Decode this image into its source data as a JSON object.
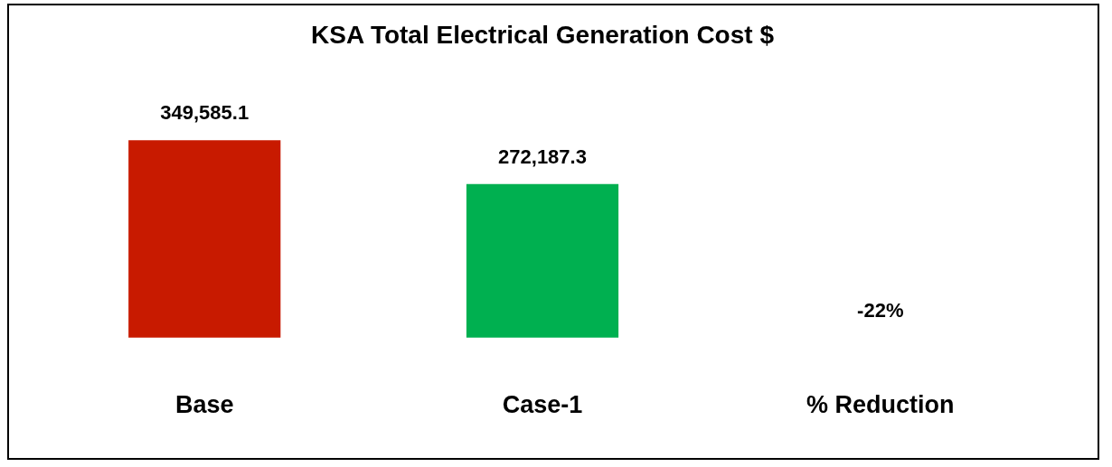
{
  "chart_data": {
    "type": "bar",
    "title": "KSA Total Electrical Generation Cost $",
    "categories": [
      "Base",
      "Case-1",
      "% Reduction"
    ],
    "values": [
      349585.1,
      272187.3,
      -22
    ],
    "colors": [
      "#c81a00",
      "#00b050",
      "#5b2c83"
    ],
    "value_labels": [
      "349,585.1",
      "272,187.3",
      "-22%"
    ],
    "tick_labels": "x",
    "grid": false
  }
}
